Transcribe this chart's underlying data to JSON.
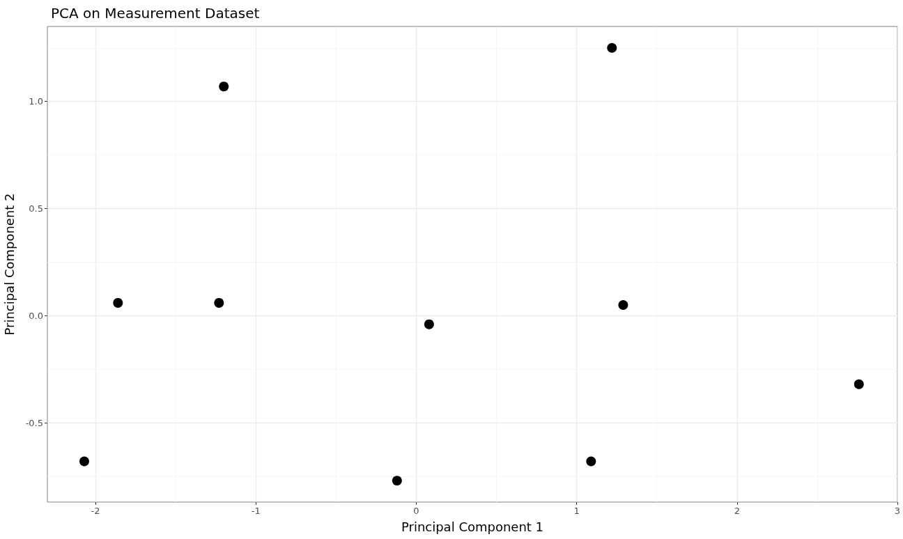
{
  "chart_data": {
    "type": "scatter",
    "title": "PCA on Measurement Dataset",
    "xlabel": "Principal Component 1",
    "ylabel": "Principal Component 2",
    "x": [
      -2.07,
      -1.86,
      -1.2,
      -1.23,
      -0.12,
      0.08,
      1.22,
      1.29,
      1.09,
      2.76
    ],
    "series": [
      {
        "color": "#000000",
        "values": [
          -0.68,
          0.06,
          1.07,
          0.06,
          -0.77,
          -0.04,
          1.25,
          0.05,
          -0.68,
          -0.32
        ]
      }
    ],
    "xlim": [
      -2.3,
      3.0
    ],
    "xticks": [
      -2,
      -1,
      0,
      1,
      2,
      3
    ],
    "ylim": [
      -0.87,
      1.35
    ],
    "yticks": [
      -0.5,
      {
        "value": 0,
        "label": "0.0"
      },
      0.5,
      {
        "value": 1,
        "label": "1.0"
      }
    ],
    "grid": true,
    "marker": "circle"
  }
}
